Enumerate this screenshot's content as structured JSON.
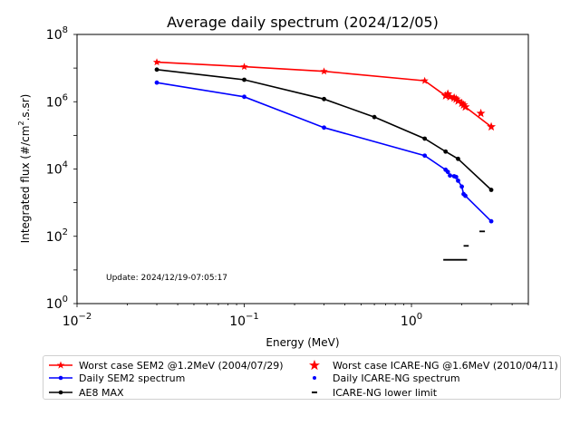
{
  "chart_data": {
    "type": "line",
    "title": "Average daily spectrum (2024/12/05)",
    "xlabel": "Energy (MeV)",
    "ylabel_prefix": "Integrated flux (#/cm",
    "ylabel_sup": "2",
    "ylabel_suffix": ".s.sr)",
    "xscale": "log",
    "yscale": "log",
    "xlim": [
      0.01,
      5
    ],
    "ylim": [
      1,
      100000000
    ],
    "x_ticks": [
      {
        "value": 0.01,
        "base": "10",
        "exp": "−2"
      },
      {
        "value": 0.1,
        "base": "10",
        "exp": "−1"
      },
      {
        "value": 1,
        "base": "10",
        "exp": "0"
      }
    ],
    "y_ticks": [
      {
        "value": 1,
        "base": "10",
        "exp": "0"
      },
      {
        "value": 100,
        "base": "10",
        "exp": "2"
      },
      {
        "value": 10000,
        "base": "10",
        "exp": "4"
      },
      {
        "value": 1000000,
        "base": "10",
        "exp": "6"
      },
      {
        "value": 100000000,
        "base": "10",
        "exp": "8"
      }
    ],
    "annotation": "Update: 2024/12/19-07:05:17",
    "series": [
      {
        "name": "Worst case SEM2 @1.2MeV (2004/07/29)",
        "color": "#ff0000",
        "style": "line-star",
        "x": [
          0.03,
          0.1,
          0.3,
          1.2,
          1.6,
          1.65,
          1.7,
          1.8,
          1.85,
          1.9,
          2.0,
          2.05,
          2.1,
          3.0
        ],
        "y": [
          15000000,
          11000000,
          8000000,
          4200000,
          1500000,
          1700000,
          1400000,
          1300000,
          1200000,
          1050000,
          900000,
          800000,
          700000,
          180000
        ]
      },
      {
        "name": "Daily SEM2 spectrum",
        "color": "#0000ff",
        "style": "line-dot",
        "x": [
          0.03,
          0.1,
          0.3,
          1.2,
          1.6,
          1.65,
          1.7,
          1.8,
          1.85,
          1.9,
          2.0,
          2.05,
          2.1,
          3.0
        ],
        "y": [
          3700000,
          1400000,
          170000,
          25000,
          9500,
          8200,
          6400,
          6100,
          5800,
          4500,
          3000,
          1800,
          1600,
          280
        ]
      },
      {
        "name": "AE8 MAX",
        "color": "#000000",
        "style": "line-dot",
        "x": [
          0.03,
          0.1,
          0.3,
          0.6,
          1.2,
          1.6,
          1.9,
          3.0
        ],
        "y": [
          9000000,
          4500000,
          1200000,
          350000,
          80000,
          33000,
          20000,
          2400
        ]
      },
      {
        "name": "Worst case ICARE-NG @1.6MeV (2010/04/11)",
        "color": "#ff0000",
        "style": "star",
        "x": [
          1.6,
          1.65,
          1.7,
          1.8,
          1.85,
          1.9,
          2.0,
          2.05,
          2.1,
          2.6,
          3.0
        ],
        "y": [
          1500000,
          1700000,
          1400000,
          1300000,
          1200000,
          1050000,
          900000,
          800000,
          700000,
          450000,
          180000
        ]
      },
      {
        "name": "Daily ICARE-NG spectrum",
        "color": "#0000ff",
        "style": "dot",
        "x": [
          1.6,
          1.65,
          1.7,
          1.8,
          1.85,
          1.9,
          2.0,
          2.05,
          2.1
        ],
        "y": [
          9500,
          8200,
          6400,
          6100,
          5800,
          4500,
          3000,
          1800,
          1600
        ]
      },
      {
        "name": "ICARE-NG lower limit",
        "color": "#000000",
        "style": "hline",
        "segments": [
          {
            "x": [
              1.55,
              2.15
            ],
            "y": 20
          },
          {
            "x": [
              2.05,
              2.2
            ],
            "y": 52
          },
          {
            "x": [
              2.55,
              2.75
            ],
            "y": 140
          }
        ]
      }
    ],
    "legend": {
      "position": "below",
      "columns": 2
    }
  }
}
